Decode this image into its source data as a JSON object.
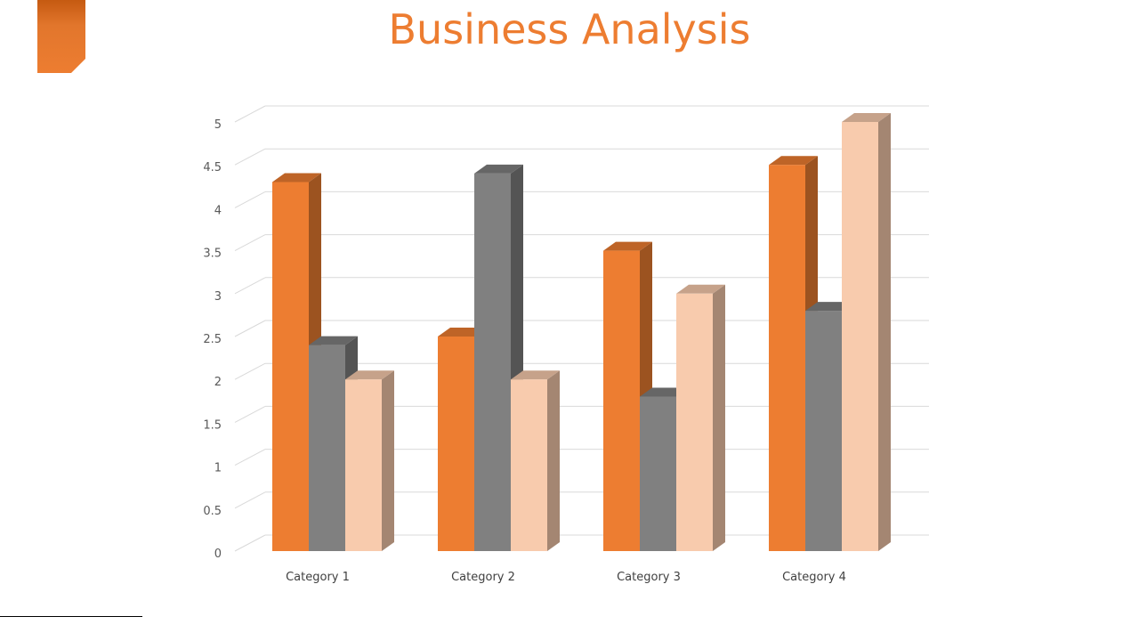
{
  "slide": {
    "title": "Business Analysis"
  },
  "colors": {
    "accent": "#ED7D31",
    "gray": "#808080",
    "peach": "#F8CBAD"
  },
  "chart_data": {
    "type": "bar",
    "title": "",
    "categories": [
      "Category 1",
      "Category 2",
      "Category 3",
      "Category 4"
    ],
    "series": [
      {
        "values": [
          4.3,
          2.5,
          3.5,
          4.5
        ],
        "color": "#ED7D31"
      },
      {
        "values": [
          2.4,
          4.4,
          1.8,
          2.8
        ],
        "color": "#808080"
      },
      {
        "values": [
          2.0,
          2.0,
          3.0,
          5.0
        ],
        "color": "#F8CBAD"
      }
    ],
    "ylim": [
      0,
      5
    ],
    "yticks": [
      "0",
      "0.5",
      "1",
      "1.5",
      "2",
      "2.5",
      "3",
      "3.5",
      "4",
      "4.5",
      "5"
    ],
    "grid": true,
    "legend": "none",
    "style": "3d-clustered-column"
  }
}
